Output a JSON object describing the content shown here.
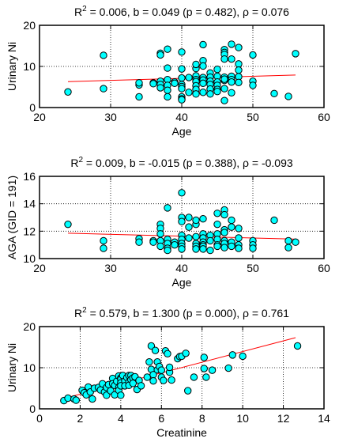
{
  "chart_data": [
    {
      "type": "scatter",
      "title_pre": "R",
      "title_sup": "2",
      "title_post": " = 0.006, b = 0.049 (p = 0.482), ρ = 0.076",
      "xlabel": "Age",
      "ylabel": "Urinary Ni",
      "xlim": [
        20,
        60
      ],
      "ylim": [
        0,
        20
      ],
      "xticks": [
        20,
        30,
        40,
        50,
        60
      ],
      "yticks": [
        0,
        10,
        20
      ],
      "grid": true,
      "fit_line": {
        "x": [
          24,
          56
        ],
        "y": [
          6.3,
          7.9
        ]
      },
      "points": [
        [
          24,
          3.8
        ],
        [
          29,
          4.6
        ],
        [
          29,
          12.7
        ],
        [
          34,
          5.5
        ],
        [
          34,
          2.6
        ],
        [
          34,
          6
        ],
        [
          36,
          6
        ],
        [
          36,
          5.8
        ],
        [
          37,
          13.2
        ],
        [
          37,
          12.8
        ],
        [
          37,
          6.4
        ],
        [
          37,
          5.6
        ],
        [
          37,
          4.8
        ],
        [
          38,
          9.6
        ],
        [
          38,
          6.8
        ],
        [
          38,
          5.4
        ],
        [
          38,
          4.2
        ],
        [
          38,
          2.6
        ],
        [
          38,
          14.2
        ],
        [
          39,
          6.2
        ],
        [
          39,
          5.9
        ],
        [
          40,
          13.5
        ],
        [
          40,
          9.4
        ],
        [
          40,
          7.2
        ],
        [
          40,
          5.6
        ],
        [
          40,
          5.1
        ],
        [
          40,
          4.6
        ],
        [
          40,
          2.6
        ],
        [
          40,
          2.1
        ],
        [
          40,
          1.9
        ],
        [
          41,
          7.3
        ],
        [
          41,
          3.7
        ],
        [
          42,
          9.5
        ],
        [
          42,
          7.7
        ],
        [
          42,
          6.8
        ],
        [
          42,
          6.3
        ],
        [
          42,
          5.3
        ],
        [
          42,
          4.4
        ],
        [
          42,
          3.3
        ],
        [
          42,
          10.5
        ],
        [
          43,
          15.3
        ],
        [
          43,
          11.4
        ],
        [
          43,
          10.1
        ],
        [
          43,
          7.3
        ],
        [
          43,
          6.7
        ],
        [
          43,
          5.9
        ],
        [
          43,
          3.7
        ],
        [
          44,
          8.4
        ],
        [
          44,
          7.4
        ],
        [
          44,
          6.4
        ],
        [
          44,
          5.6
        ],
        [
          44,
          4.5
        ],
        [
          44,
          3.3
        ],
        [
          45,
          9.3
        ],
        [
          45,
          7.6
        ],
        [
          45,
          6.2
        ],
        [
          45,
          5.4
        ],
        [
          45,
          4.4
        ],
        [
          45,
          3.9
        ],
        [
          46,
          14.1
        ],
        [
          46,
          13.4
        ],
        [
          46,
          12.9
        ],
        [
          46,
          11.8
        ],
        [
          46,
          7.4
        ],
        [
          46,
          6.6
        ],
        [
          46,
          6.9
        ],
        [
          46,
          4.6
        ],
        [
          46,
          1.7
        ],
        [
          47,
          15.4
        ],
        [
          47,
          11.8
        ],
        [
          47,
          7.6
        ],
        [
          47,
          6.8
        ],
        [
          47,
          6.2
        ],
        [
          47,
          3.6
        ],
        [
          48,
          14.6
        ],
        [
          48,
          10.6
        ],
        [
          48,
          9.1
        ],
        [
          48,
          7.5
        ],
        [
          48,
          6.1
        ],
        [
          50,
          12.8
        ],
        [
          50,
          6.4
        ],
        [
          50,
          5.4
        ],
        [
          53,
          3.4
        ],
        [
          55,
          2.7
        ],
        [
          56,
          13.1
        ]
      ]
    },
    {
      "type": "scatter",
      "title_pre": "R",
      "title_sup": "2",
      "title_post": " = 0.009, b = -0.015 (p = 0.388), ρ = -0.093",
      "xlabel": "Age",
      "ylabel": "AGA (GID = 191)",
      "xlim": [
        20,
        60
      ],
      "ylim": [
        10,
        16
      ],
      "xticks": [
        20,
        30,
        40,
        50,
        60
      ],
      "yticks": [
        10,
        12,
        14,
        16
      ],
      "grid": true,
      "fit_line": {
        "x": [
          24,
          56
        ],
        "y": [
          11.85,
          11.42
        ]
      },
      "points": [
        [
          24,
          12.5
        ],
        [
          29,
          11.3
        ],
        [
          29,
          10.75
        ],
        [
          34,
          11.45
        ],
        [
          34,
          11.2
        ],
        [
          36,
          11.3
        ],
        [
          36,
          11.2
        ],
        [
          37,
          12.5
        ],
        [
          37,
          12.2
        ],
        [
          37,
          11.8
        ],
        [
          37,
          11.3
        ],
        [
          37,
          10.9
        ],
        [
          38,
          13.7
        ],
        [
          38,
          11.4
        ],
        [
          38,
          11.1
        ],
        [
          38,
          10.75
        ],
        [
          38,
          10.6
        ],
        [
          39,
          11.2
        ],
        [
          39,
          11.0
        ],
        [
          40,
          14.8
        ],
        [
          40,
          13.0
        ],
        [
          40,
          12.7
        ],
        [
          40,
          11.7
        ],
        [
          40,
          11.4
        ],
        [
          40,
          11.1
        ],
        [
          40,
          10.9
        ],
        [
          40,
          10.7
        ],
        [
          41,
          13.0
        ],
        [
          41,
          12.3
        ],
        [
          41,
          11.5
        ],
        [
          42,
          12.5
        ],
        [
          42,
          11.6
        ],
        [
          42,
          11.1
        ],
        [
          42,
          10.9
        ],
        [
          42,
          10.7
        ],
        [
          42,
          12.8
        ],
        [
          43,
          12.9
        ],
        [
          43,
          11.8
        ],
        [
          43,
          11.5
        ],
        [
          43,
          11.2
        ],
        [
          43,
          11.0
        ],
        [
          43,
          10.9
        ],
        [
          43,
          10.7
        ],
        [
          44,
          11.7
        ],
        [
          44,
          11.3
        ],
        [
          44,
          10.6
        ],
        [
          45,
          13.3
        ],
        [
          45,
          11.8
        ],
        [
          45,
          11.4
        ],
        [
          45,
          11.0
        ],
        [
          45,
          10.9
        ],
        [
          45,
          12.5
        ],
        [
          46,
          13.55
        ],
        [
          46,
          13.2
        ],
        [
          46,
          12.1
        ],
        [
          46,
          11.9
        ],
        [
          46,
          11.3
        ],
        [
          46,
          11.1
        ],
        [
          46,
          10.8
        ],
        [
          47,
          12.8
        ],
        [
          47,
          12.3
        ],
        [
          47,
          11.2
        ],
        [
          47,
          10.9
        ],
        [
          48,
          12.2
        ],
        [
          48,
          11.5
        ],
        [
          48,
          11.0
        ],
        [
          48,
          10.75
        ],
        [
          50,
          11.3
        ],
        [
          50,
          11.0
        ],
        [
          50,
          10.75
        ],
        [
          53,
          12.8
        ],
        [
          55,
          11.3
        ],
        [
          55,
          10.8
        ],
        [
          56,
          11.2
        ]
      ]
    },
    {
      "type": "scatter",
      "title_pre": "R",
      "title_sup": "2",
      "title_post": " = 0.579, b = 1.300 (p = 0.000), ρ = 0.761",
      "xlabel": "Creatinine",
      "ylabel": "Urinary Ni",
      "xlim": [
        0,
        14
      ],
      "ylim": [
        0,
        20
      ],
      "xticks": [
        0,
        2,
        4,
        6,
        8,
        10,
        12,
        14
      ],
      "yticks": [
        0,
        10,
        20
      ],
      "grid": true,
      "fit_line": {
        "x": [
          1.1,
          12.6
        ],
        "y": [
          2.4,
          17.3
        ]
      },
      "points": [
        [
          1.2,
          2.0
        ],
        [
          1.4,
          2.6
        ],
        [
          1.7,
          2.4
        ],
        [
          1.8,
          2.1
        ],
        [
          2.1,
          4.5
        ],
        [
          2.2,
          3.9
        ],
        [
          2.3,
          3.4
        ],
        [
          2.4,
          5.3
        ],
        [
          2.5,
          4.1
        ],
        [
          2.6,
          2.4
        ],
        [
          2.7,
          5.0
        ],
        [
          2.9,
          5.2
        ],
        [
          3.0,
          4.6
        ],
        [
          3.1,
          6.1
        ],
        [
          3.2,
          4.1
        ],
        [
          3.3,
          5.2
        ],
        [
          3.3,
          3.3
        ],
        [
          3.4,
          5.9
        ],
        [
          3.5,
          4.4
        ],
        [
          3.6,
          7.4
        ],
        [
          3.6,
          6.1
        ],
        [
          3.7,
          5.7
        ],
        [
          3.7,
          3.4
        ],
        [
          3.8,
          6.7
        ],
        [
          3.9,
          8.0
        ],
        [
          3.9,
          5.2
        ],
        [
          3.9,
          4.5
        ],
        [
          4.0,
          7.5
        ],
        [
          4.0,
          7.2
        ],
        [
          4.0,
          6.3
        ],
        [
          4.0,
          5.6
        ],
        [
          4.0,
          3.3
        ],
        [
          4.1,
          8.1
        ],
        [
          4.2,
          6.8
        ],
        [
          4.2,
          5.6
        ],
        [
          4.3,
          7.6
        ],
        [
          4.4,
          8.1
        ],
        [
          4.4,
          6.5
        ],
        [
          4.4,
          5.7
        ],
        [
          4.5,
          8.1
        ],
        [
          4.5,
          7.1
        ],
        [
          4.6,
          7.5
        ],
        [
          4.6,
          6.2
        ],
        [
          4.7,
          7.8
        ],
        [
          4.8,
          4.7
        ],
        [
          4.9,
          6.9
        ],
        [
          5.0,
          5.6
        ],
        [
          5.3,
          7.7
        ],
        [
          5.4,
          11.4
        ],
        [
          5.5,
          15.3
        ],
        [
          5.5,
          9.6
        ],
        [
          5.6,
          8.3
        ],
        [
          5.6,
          6.8
        ],
        [
          5.7,
          14.2
        ],
        [
          5.8,
          9.5
        ],
        [
          5.8,
          11.4
        ],
        [
          5.9,
          10.3
        ],
        [
          6.0,
          9.4
        ],
        [
          6.0,
          7.7
        ],
        [
          6.1,
          6.9
        ],
        [
          6.2,
          14.1
        ],
        [
          6.3,
          13.4
        ],
        [
          6.4,
          8.9
        ],
        [
          6.4,
          10.1
        ],
        [
          6.5,
          7.0
        ],
        [
          6.8,
          12.2
        ],
        [
          6.9,
          12.7
        ],
        [
          7.0,
          12.8
        ],
        [
          7.2,
          13.5
        ],
        [
          7.3,
          4.4
        ],
        [
          7.6,
          7.7
        ],
        [
          8.1,
          12.5
        ],
        [
          8.1,
          9.8
        ],
        [
          8.2,
          7.7
        ],
        [
          8.5,
          9.4
        ],
        [
          9.3,
          9.9
        ],
        [
          9.5,
          13.1
        ],
        [
          10.0,
          12.8
        ],
        [
          12.7,
          15.3
        ]
      ]
    }
  ]
}
